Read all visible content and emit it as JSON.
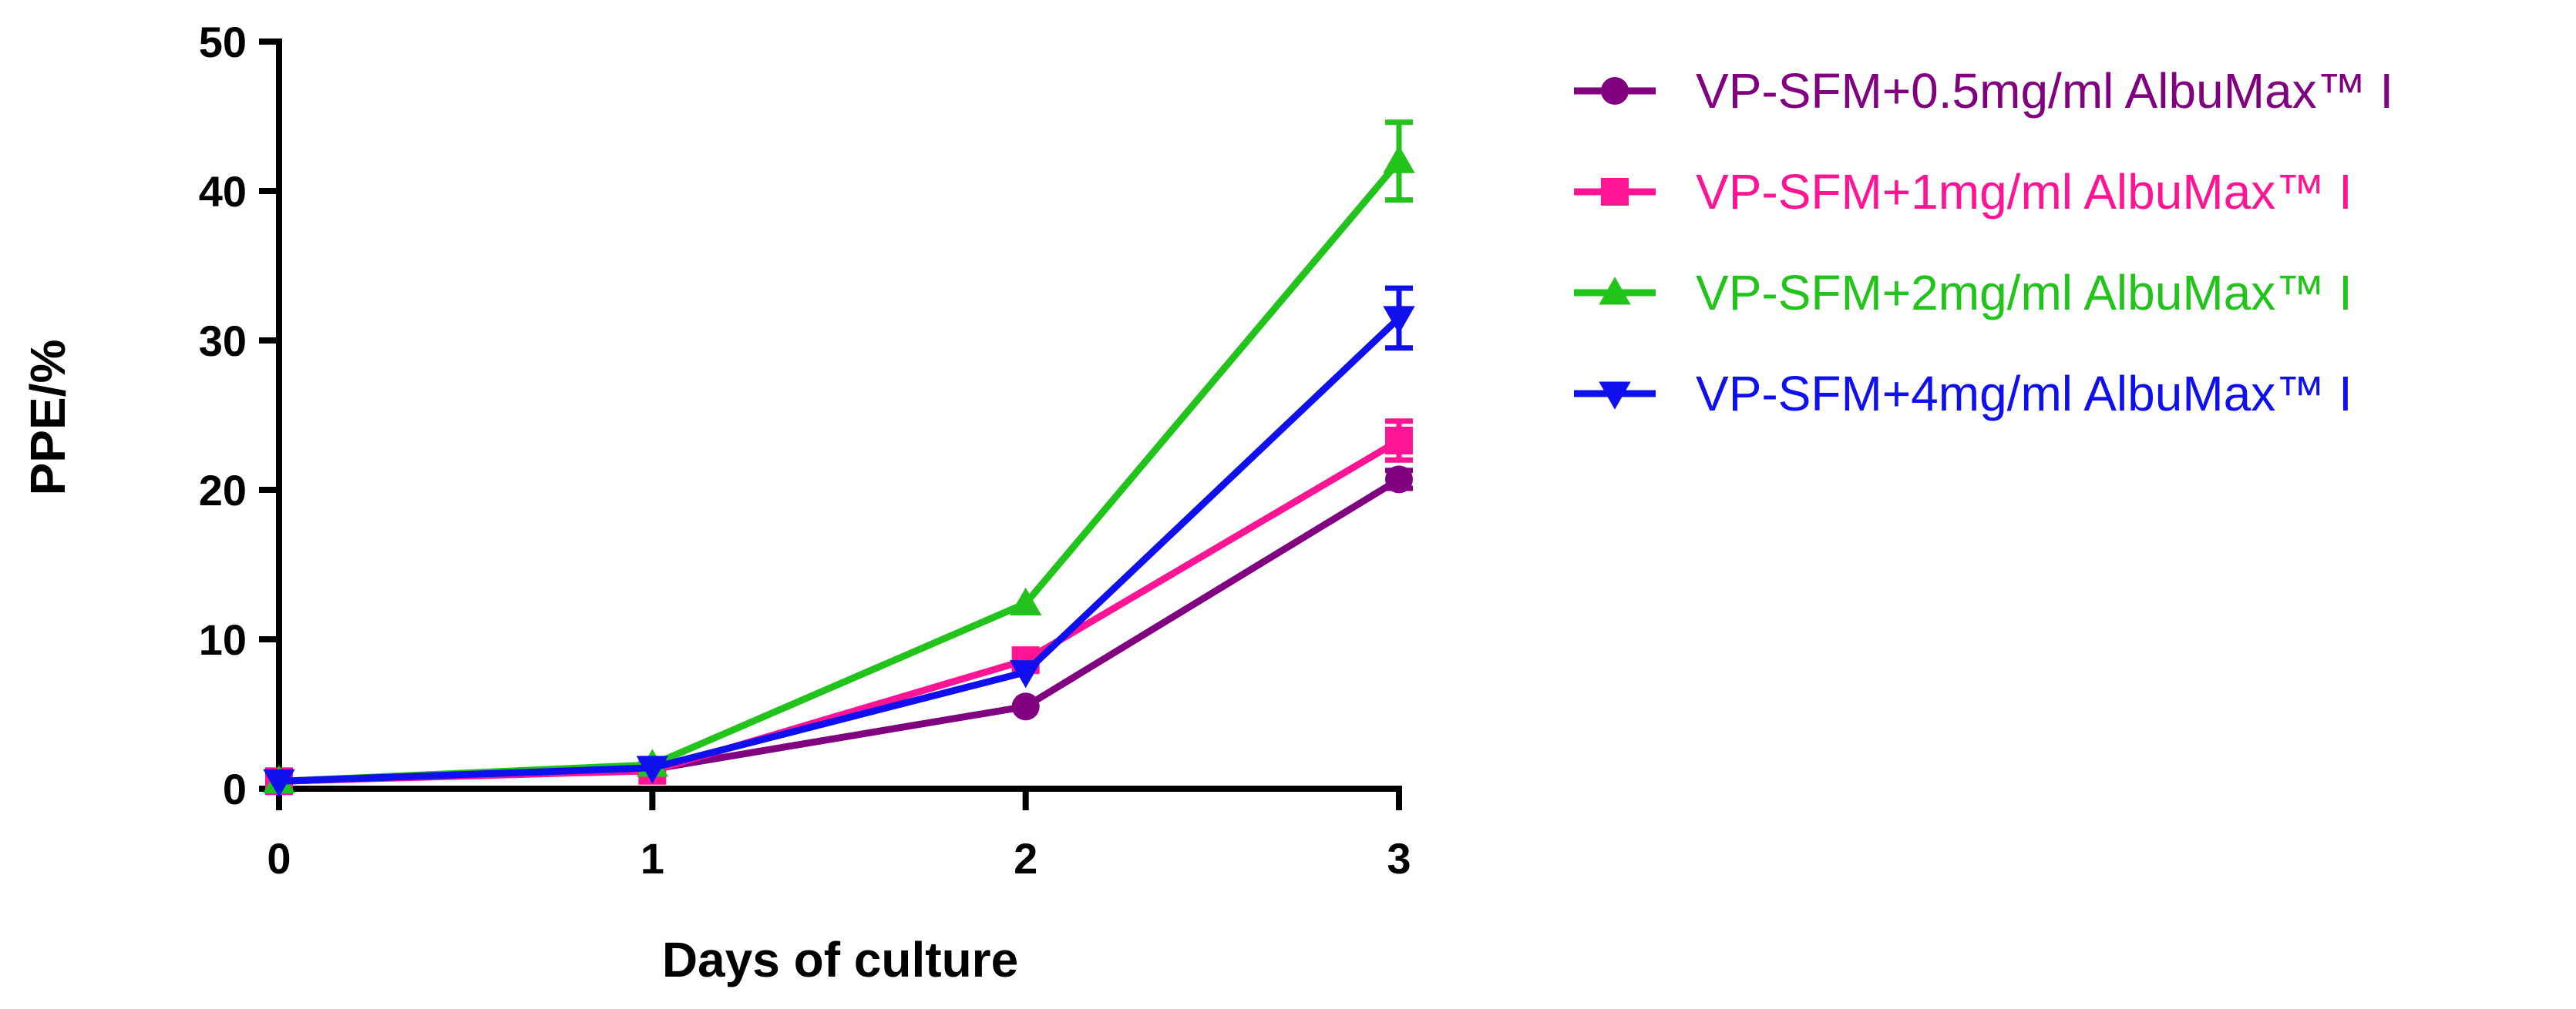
{
  "chart_data": {
    "type": "line",
    "title": "",
    "xlabel": "Days of culture",
    "ylabel": "PPE/%",
    "x": [
      0,
      1,
      2,
      3
    ],
    "x_tick_labels": [
      "0",
      "1",
      "2",
      "3"
    ],
    "y_tick_labels": [
      "0",
      "10",
      "20",
      "30",
      "40",
      "50"
    ],
    "y_ticks": [
      0,
      10,
      20,
      30,
      40,
      50
    ],
    "xlim": [
      0,
      3
    ],
    "ylim": [
      0,
      50
    ],
    "grid": false,
    "legend_position": "right",
    "series": [
      {
        "name": "VP-SFM+0.5mg/ml AlbuMax™ I",
        "color": "#800080",
        "marker": "circle",
        "values": [
          0.5,
          1.3,
          5.5,
          20.7
        ],
        "errors": [
          0.2,
          0.2,
          0.3,
          0.6
        ]
      },
      {
        "name": "VP-SFM+1mg/ml AlbuMax™ I",
        "color": "#ff1493",
        "marker": "square",
        "values": [
          0.5,
          1.2,
          8.6,
          23.3
        ],
        "errors": [
          0.2,
          0.2,
          0.4,
          1.3
        ]
      },
      {
        "name": "VP-SFM+2mg/ml AlbuMax™ I",
        "color": "#22c41c",
        "marker": "triangle-up",
        "values": [
          0.5,
          1.6,
          12.4,
          42.0
        ],
        "errors": [
          0.2,
          0.2,
          0.4,
          2.6
        ]
      },
      {
        "name": "VP-SFM+4mg/ml AlbuMax™ I",
        "color": "#1010ee",
        "marker": "triangle-down",
        "values": [
          0.5,
          1.4,
          7.8,
          31.5
        ],
        "errors": [
          0.2,
          0.2,
          0.5,
          2.0
        ]
      }
    ]
  }
}
